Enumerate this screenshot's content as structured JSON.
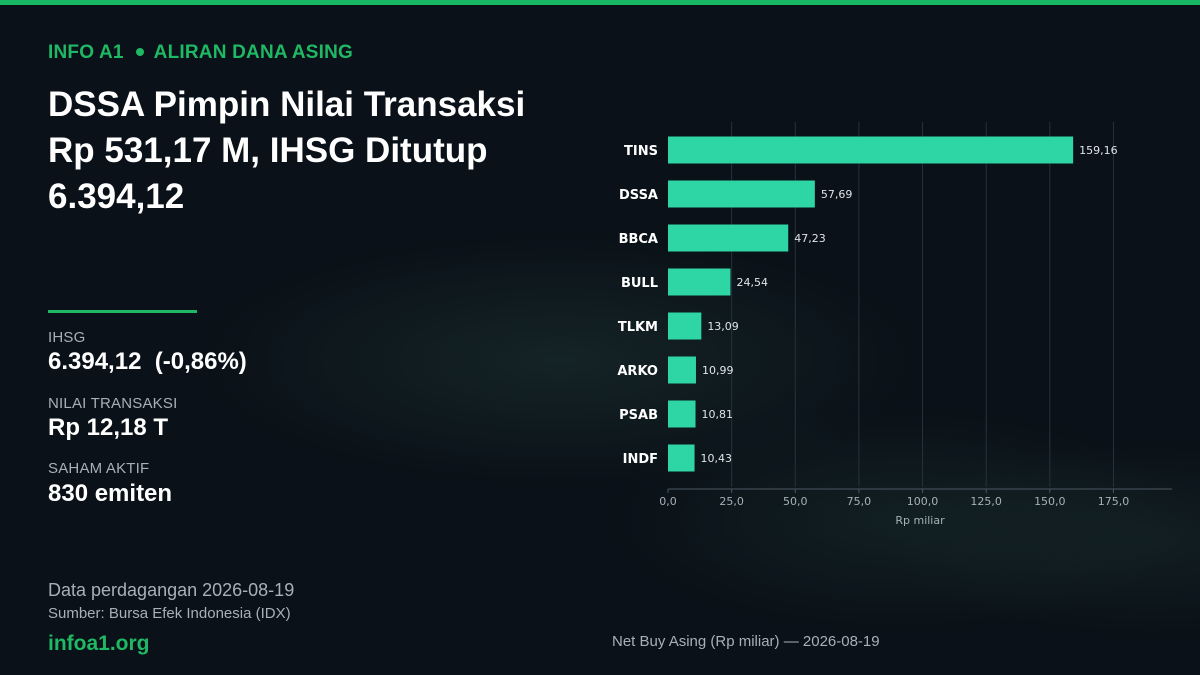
{
  "header": {
    "kicker_brand": "INFO A1",
    "kicker_topic": "ALIRAN DANA ASING",
    "headline": "DSSA Pimpin Nilai Transaksi Rp 531,17 M, IHSG Ditutup 6.394,12"
  },
  "stats": [
    {
      "label": "IHSG",
      "value": "6.394,12  (-0,86%)"
    },
    {
      "label": "NILAI TRANSAKSI",
      "value": "Rp 12,18 T"
    },
    {
      "label": "SAHAM AKTIF",
      "value": "830 emiten"
    }
  ],
  "footer": {
    "date_line": "Data perdagangan 2026-08-19",
    "source_line": "Sumber: Bursa Efek Indonesia (IDX)",
    "site": "infoa1.org"
  },
  "chart_caption": "Net Buy Asing (Rp miliar) — 2026-08-19",
  "colors": {
    "accent": "#1fb865",
    "bar": "#2ed6a6",
    "background": "#0a1118"
  },
  "chart_data": {
    "type": "bar",
    "orientation": "horizontal",
    "categories": [
      "TINS",
      "DSSA",
      "BBCA",
      "BULL",
      "TLKM",
      "ARKO",
      "PSAB",
      "INDF"
    ],
    "values": [
      159.16,
      57.69,
      47.23,
      24.54,
      13.09,
      10.99,
      10.81,
      10.43
    ],
    "value_labels": [
      "159,16",
      "57,69",
      "47,23",
      "24,54",
      "13,09",
      "10,99",
      "10,81",
      "10,43"
    ],
    "xlabel": "Rp miliar",
    "xlim": [
      0,
      198
    ],
    "x_ticks": [
      0,
      25,
      50,
      75,
      100,
      125,
      150,
      175
    ],
    "x_tick_labels": [
      "0,0",
      "25,0",
      "50,0",
      "75,0",
      "100,0",
      "125,0",
      "150,0",
      "175,0"
    ],
    "grid": "vertical"
  }
}
